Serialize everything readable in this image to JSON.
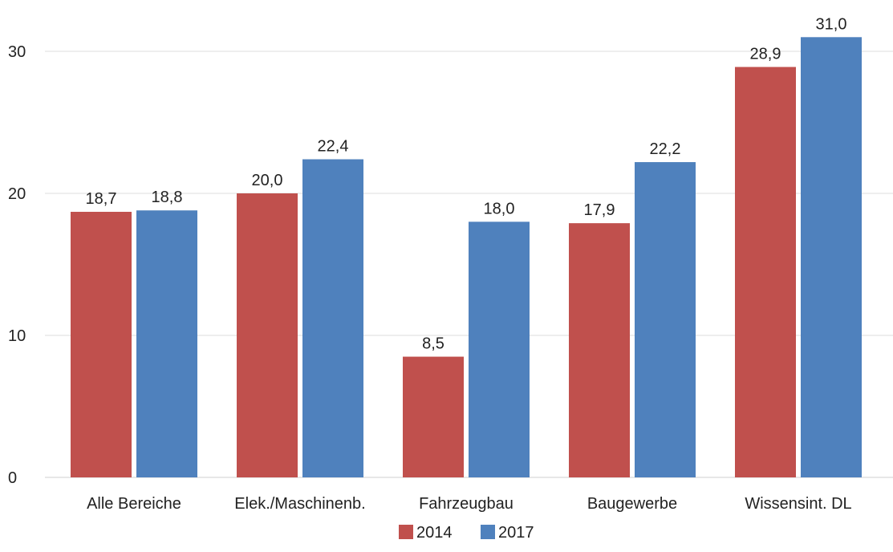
{
  "chart_data": {
    "type": "bar",
    "title": "",
    "xlabel": "",
    "ylabel": "",
    "categories": [
      "Alle Bereiche",
      "Elek./Maschinenb.",
      "Fahrzeugbau",
      "Baugewerbe",
      "Wissensint. DL"
    ],
    "series": [
      {
        "name": "2014",
        "color": "#c0504d",
        "values": [
          18.7,
          20.0,
          8.5,
          17.9,
          28.9
        ],
        "labels": [
          "18,7",
          "20,0",
          "8,5",
          "17,9",
          "28,9"
        ]
      },
      {
        "name": "2017",
        "color": "#4f81bd",
        "values": [
          18.8,
          22.4,
          18.0,
          22.2,
          31.0
        ],
        "labels": [
          "18,8",
          "22,4",
          "18,0",
          "22,2",
          "31,0"
        ]
      }
    ],
    "ylim": [
      0,
      30
    ],
    "yticks": [
      0,
      10,
      20,
      30
    ],
    "ytick_labels": [
      "0",
      "10",
      "20",
      "30"
    ],
    "grid": true,
    "legend_position": "bottom-center"
  }
}
